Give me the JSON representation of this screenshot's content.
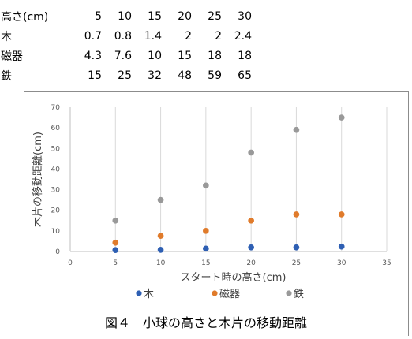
{
  "table": {
    "header": {
      "label": "高さ(cm)",
      "values": [
        "5",
        "10",
        "15",
        "20",
        "25",
        "30"
      ]
    },
    "rows": [
      {
        "label": "木",
        "values": [
          "0.7",
          "0.8",
          "1.4",
          "2",
          "2",
          "2.4"
        ]
      },
      {
        "label": "磁器",
        "values": [
          "4.3",
          "7.6",
          "10",
          "15",
          "18",
          "18"
        ]
      },
      {
        "label": "鉄",
        "values": [
          "15",
          "25",
          "32",
          "48",
          "59",
          "65"
        ]
      }
    ]
  },
  "chart_data": {
    "type": "scatter",
    "xlabel": "スタート時の高さ(cm)",
    "ylabel": "木片の移動距離(cm)",
    "xlim": [
      0,
      35
    ],
    "ylim": [
      0,
      70
    ],
    "xticks": [
      "0",
      "5",
      "10",
      "15",
      "20",
      "25",
      "30",
      "35"
    ],
    "yticks": [
      "0",
      "10",
      "20",
      "30",
      "40",
      "50",
      "60",
      "70"
    ],
    "grid": "vertical",
    "legend": "bottom",
    "series": [
      {
        "name": "木",
        "color": "#2e5fb3",
        "x": [
          5,
          10,
          15,
          20,
          25,
          30
        ],
        "y": [
          0.7,
          0.8,
          1.4,
          2,
          2,
          2.4
        ]
      },
      {
        "name": "磁器",
        "color": "#e07b2b",
        "x": [
          5,
          10,
          15,
          20,
          25,
          30
        ],
        "y": [
          4.3,
          7.6,
          10,
          15,
          18,
          18
        ]
      },
      {
        "name": "鉄",
        "color": "#999999",
        "x": [
          5,
          10,
          15,
          20,
          25,
          30
        ],
        "y": [
          15,
          25,
          32,
          48,
          59,
          65
        ]
      }
    ]
  },
  "caption": "図４　小球の高さと木片の移動距離"
}
